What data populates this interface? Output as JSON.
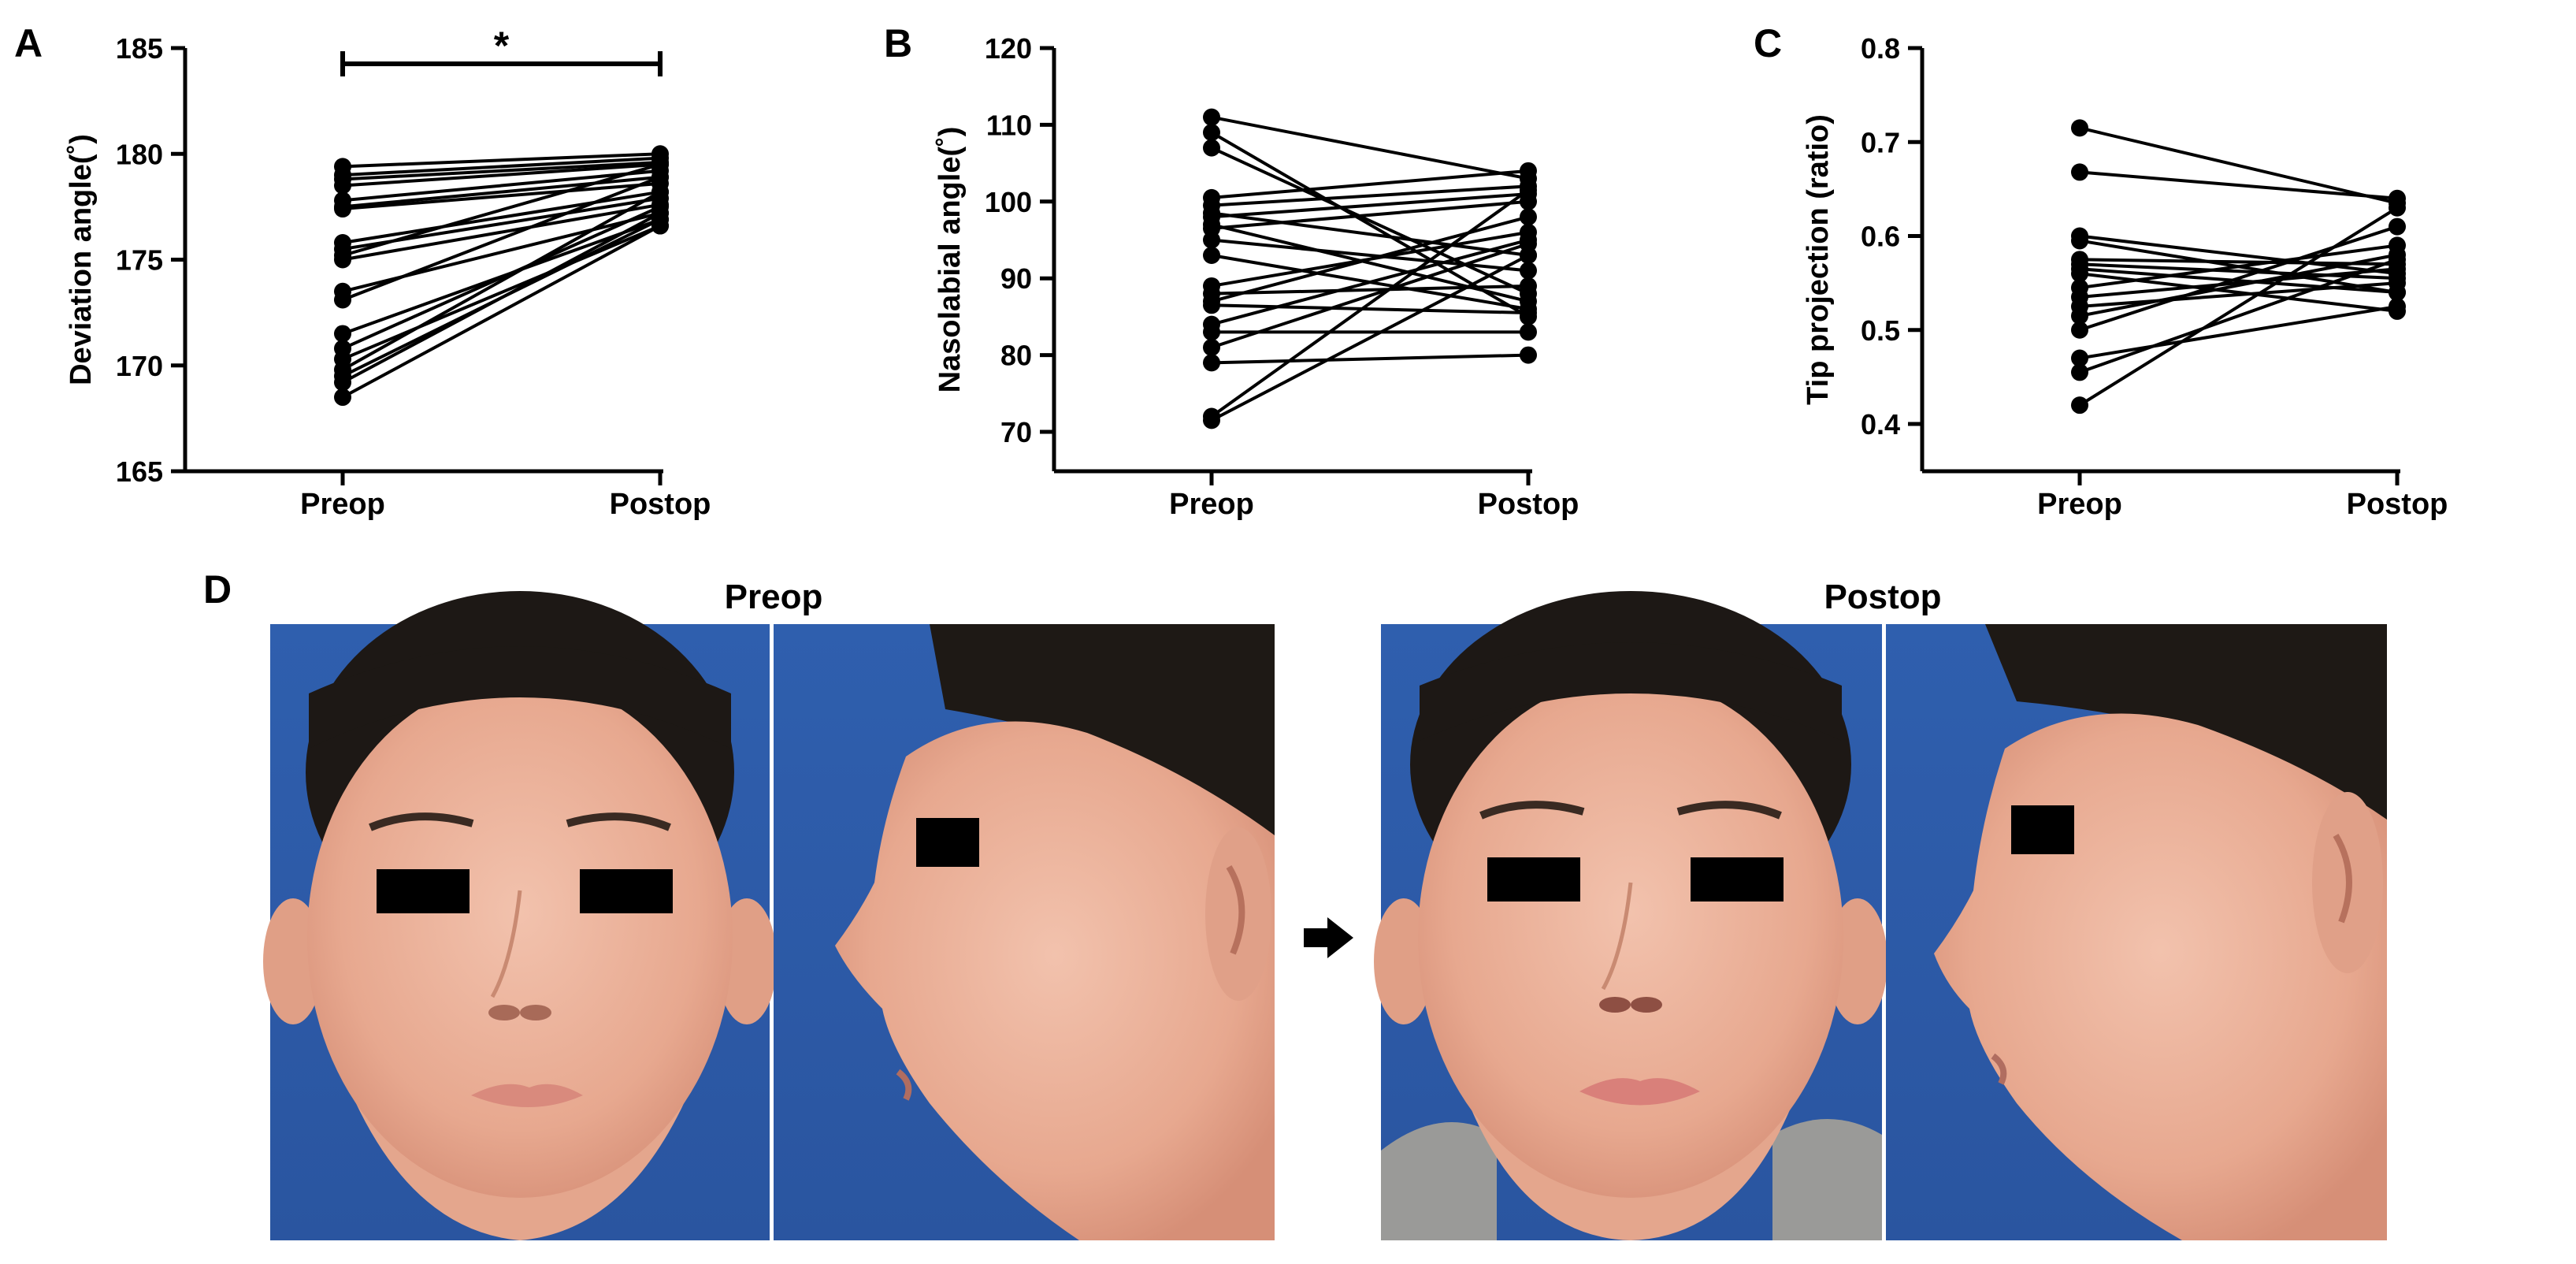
{
  "panel_labels": {
    "A": "A",
    "B": "B",
    "C": "C",
    "D": "D"
  },
  "photo_section": {
    "preop_title": "Preop",
    "postop_title": "Postop",
    "arrow_icon": "right-arrow-icon"
  },
  "chart_data": [
    {
      "type": "line",
      "panel": "A",
      "title": "",
      "xlabel": "",
      "ylabel": "Deviation angle(˚)",
      "categories": [
        "Preop",
        "Postop"
      ],
      "ylim": [
        165,
        185
      ],
      "yticks": [
        165,
        170,
        175,
        180,
        185
      ],
      "significance": "*",
      "series": [
        {
          "values": [
            179.4,
            180.0
          ]
        },
        {
          "values": [
            179.0,
            179.8
          ]
        },
        {
          "values": [
            178.8,
            179.6
          ]
        },
        {
          "values": [
            178.5,
            179.5
          ]
        },
        {
          "values": [
            177.8,
            179.2
          ]
        },
        {
          "values": [
            177.5,
            178.9
          ]
        },
        {
          "values": [
            177.4,
            178.6
          ]
        },
        {
          "values": [
            175.8,
            178.2
          ]
        },
        {
          "values": [
            175.5,
            177.9
          ]
        },
        {
          "values": [
            175.2,
            179.5
          ]
        },
        {
          "values": [
            175.0,
            177.6
          ]
        },
        {
          "values": [
            173.5,
            177.2
          ]
        },
        {
          "values": [
            173.1,
            178.9
          ]
        },
        {
          "values": [
            171.5,
            176.9
          ]
        },
        {
          "values": [
            170.8,
            177.5
          ]
        },
        {
          "values": [
            170.3,
            176.6
          ]
        },
        {
          "values": [
            169.8,
            178.2
          ]
        },
        {
          "values": [
            169.5,
            176.9
          ]
        },
        {
          "values": [
            169.2,
            177.2
          ]
        },
        {
          "values": [
            168.5,
            176.6
          ]
        }
      ]
    },
    {
      "type": "line",
      "panel": "B",
      "title": "",
      "xlabel": "",
      "ylabel": "Nasolabial angle(˚)",
      "categories": [
        "Preop",
        "Postop"
      ],
      "ylim": [
        70,
        120
      ],
      "yticks": [
        70,
        80,
        90,
        100,
        110,
        120
      ],
      "series": [
        {
          "values": [
            111.0,
            103.0
          ]
        },
        {
          "values": [
            109.0,
            85.0
          ]
        },
        {
          "values": [
            107.0,
            88.0
          ]
        },
        {
          "values": [
            100.5,
            104.0
          ]
        },
        {
          "values": [
            99.5,
            102.0
          ]
        },
        {
          "values": [
            98.5,
            93.0
          ]
        },
        {
          "values": [
            98.0,
            101.0
          ]
        },
        {
          "values": [
            97.0,
            87.0
          ]
        },
        {
          "values": [
            96.5,
            100.0
          ]
        },
        {
          "values": [
            95.0,
            91.0
          ]
        },
        {
          "values": [
            93.0,
            86.0
          ]
        },
        {
          "values": [
            89.0,
            96.0
          ]
        },
        {
          "values": [
            88.0,
            89.0
          ]
        },
        {
          "values": [
            87.0,
            98.0
          ]
        },
        {
          "values": [
            86.5,
            85.5
          ]
        },
        {
          "values": [
            84.0,
            95.0
          ]
        },
        {
          "values": [
            83.0,
            83.0
          ]
        },
        {
          "values": [
            81.0,
            94.5
          ]
        },
        {
          "values": [
            79.0,
            80.0
          ]
        },
        {
          "values": [
            72.0,
            101.5
          ]
        },
        {
          "values": [
            71.5,
            93.0
          ]
        }
      ]
    },
    {
      "type": "line",
      "panel": "C",
      "title": "",
      "xlabel": "",
      "ylabel": "Tip projection (ratio)",
      "categories": [
        "Preop",
        "Postop"
      ],
      "ylim": [
        0.4,
        0.8
      ],
      "yticks": [
        0.4,
        0.5,
        0.6,
        0.7,
        0.8
      ],
      "series": [
        {
          "values": [
            0.715,
            0.635
          ]
        },
        {
          "values": [
            0.668,
            0.64
          ]
        },
        {
          "values": [
            0.6,
            0.56
          ]
        },
        {
          "values": [
            0.595,
            0.54
          ]
        },
        {
          "values": [
            0.575,
            0.57
          ]
        },
        {
          "values": [
            0.57,
            0.555
          ]
        },
        {
          "values": [
            0.565,
            0.54
          ]
        },
        {
          "values": [
            0.56,
            0.52
          ]
        },
        {
          "values": [
            0.545,
            0.59
          ]
        },
        {
          "values": [
            0.535,
            0.565
          ]
        },
        {
          "values": [
            0.525,
            0.55
          ]
        },
        {
          "values": [
            0.515,
            0.58
          ]
        },
        {
          "values": [
            0.5,
            0.61
          ]
        },
        {
          "values": [
            0.47,
            0.525
          ]
        },
        {
          "values": [
            0.455,
            0.575
          ]
        },
        {
          "values": [
            0.42,
            0.63
          ]
        }
      ]
    }
  ]
}
